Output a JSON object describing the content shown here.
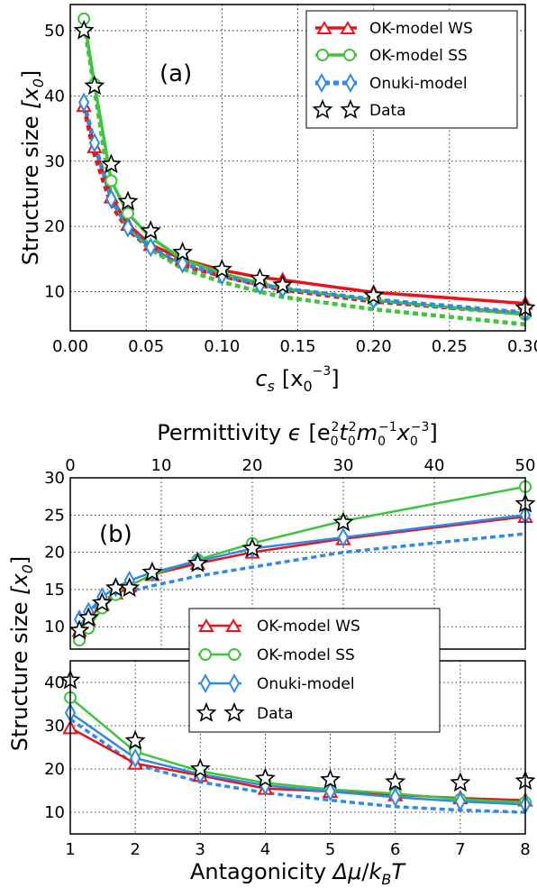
{
  "colors": {
    "ws": "#e8141b",
    "ss": "#3dc63c",
    "onuki": "#2e8ae6",
    "data_fill": "#ffffff",
    "data_edge": "#000000"
  },
  "chart_data": [
    {
      "id": "a",
      "type": "line",
      "panel_label": "(a)",
      "xlabel_main": "c",
      "xlabel_sub": "s",
      "xlabel_open": "[x",
      "xlabel_xsub": "0",
      "xlabel_sup": "−3",
      "xlabel_close": "]",
      "ylabel_main": "Structure size ",
      "ylabel_open": "[x",
      "ylabel_sub": "0",
      "ylabel_close": "]",
      "xlim": [
        0,
        0.3
      ],
      "ylim": [
        4,
        54
      ],
      "xticks": [
        "0.00",
        "0.05",
        "0.10",
        "0.15",
        "0.20",
        "0.25",
        "0.30"
      ],
      "yticks": [
        "10",
        "20",
        "30",
        "40",
        "50"
      ],
      "grid": true,
      "legend": [
        "OK-model WS",
        "OK-model SS",
        "Onuki-model",
        "Data"
      ],
      "x": [
        0.009,
        0.016,
        0.027,
        0.038,
        0.053,
        0.074,
        0.1,
        0.125,
        0.14,
        0.2,
        0.3
      ],
      "series": [
        {
          "name": "OK-model WS",
          "key": "ws",
          "values": [
            38.5,
            32.2,
            24.5,
            20.3,
            17.2,
            15.0,
            13.3,
            12.2,
            11.8,
            9.9,
            8.2
          ]
        },
        {
          "name": "OK-model SS",
          "key": "ss",
          "values": [
            51.8,
            41.8,
            27.0,
            22.0,
            18.3,
            15.0,
            12.8,
            11.3,
            10.5,
            8.7,
            6.5
          ]
        },
        {
          "name": "Onuki-model",
          "key": "onuki",
          "values": [
            39.0,
            32.8,
            24.2,
            19.8,
            16.8,
            14.3,
            12.5,
            11.0,
            10.5,
            8.8,
            6.8
          ]
        },
        {
          "name": "Data",
          "key": "data",
          "values": [
            50.0,
            41.5,
            29.5,
            23.8,
            19.3,
            16.0,
            13.4,
            12.0,
            11.0,
            9.4,
            7.5
          ]
        }
      ],
      "extra_dashed": [
        {
          "key": "ws",
          "values": [
            38.2,
            31.0,
            23.3,
            19.5,
            16.5,
            14.0,
            12.4,
            11.0,
            10.3,
            8.5,
            6.6
          ]
        },
        {
          "key": "ss",
          "values": [
            51.0,
            41.0,
            24.5,
            20.0,
            16.5,
            13.5,
            11.5,
            10.0,
            9.2,
            7.3,
            5.0
          ]
        }
      ]
    },
    {
      "id": "b_top",
      "type": "line",
      "panel_label": "(b)",
      "xlabel_top_main": "Permittivity ",
      "xlabel_top_sym": "ϵ",
      "xlabel_top_units": "[e",
      "xlabel_top_e_sub": "0",
      "xlabel_top_e_sup": "2",
      "xlabel_top_t": "t",
      "xlabel_top_t_sub": "0",
      "xlabel_top_t_sup": "2",
      "xlabel_top_m": "m",
      "xlabel_top_m_sub": "0",
      "xlabel_top_m_sup": "−1",
      "xlabel_top_x": "x",
      "xlabel_top_x_sub": "0",
      "xlabel_top_x_sup": "−3",
      "xlabel_top_close": "]",
      "xlim": [
        0,
        50
      ],
      "ylim": [
        7,
        30
      ],
      "xticks": [
        "0",
        "10",
        "20",
        "30",
        "40",
        "50"
      ],
      "yticks": [
        "10",
        "15",
        "20",
        "25",
        "30"
      ],
      "grid": true,
      "x": [
        1.0,
        2.0,
        3.5,
        5.0,
        6.5,
        9.0,
        14.0,
        20.0,
        30.0,
        50.0
      ],
      "series": [
        {
          "name": "OK-model WS",
          "key": "ws",
          "values": [
            9.5,
            11.0,
            13.0,
            14.5,
            15.5,
            17.0,
            18.5,
            20.0,
            21.8,
            24.8
          ]
        },
        {
          "name": "OK-model SS",
          "key": "ss",
          "values": [
            8.2,
            9.8,
            12.5,
            14.3,
            15.5,
            17.0,
            19.0,
            21.2,
            24.2,
            28.8
          ]
        },
        {
          "name": "Onuki-model",
          "key": "onuki",
          "values": [
            11.0,
            12.0,
            14.0,
            15.3,
            16.2,
            17.3,
            18.8,
            20.5,
            22.0,
            25.0
          ]
        },
        {
          "name": "Data",
          "key": "data",
          "values": [
            9.5,
            11.2,
            13.2,
            15.2,
            15.2,
            17.3,
            18.5,
            20.5,
            24.0,
            26.5
          ]
        }
      ],
      "extra_dashed": [
        {
          "key": "onuki",
          "values": [
            11.0,
            12.0,
            13.5,
            14.3,
            14.8,
            15.5,
            16.8,
            18.0,
            20.0,
            22.5
          ]
        }
      ]
    },
    {
      "id": "b_bottom",
      "type": "line",
      "xlabel_main": "Antagonicity ",
      "xlabel_sym": "Δμ",
      "xlabel_slash": "/",
      "xlabel_k": "k",
      "xlabel_k_sub": "B",
      "xlabel_T": "T",
      "ylabel_main": "Structure size ",
      "ylabel_open": "[x",
      "ylabel_sub": "0",
      "ylabel_close": "]",
      "xlim": [
        1,
        8
      ],
      "ylim": [
        5,
        45
      ],
      "xticks": [
        "1",
        "2",
        "3",
        "4",
        "5",
        "6",
        "7",
        "8"
      ],
      "yticks": [
        "10",
        "20",
        "30",
        "40"
      ],
      "grid": true,
      "legend": [
        "OK-model WS",
        "OK-model SS",
        "Onuki-model",
        "Data"
      ],
      "x": [
        1,
        2,
        3,
        4,
        5,
        6,
        7,
        8
      ],
      "series": [
        {
          "name": "OK-model WS",
          "key": "ws",
          "values": [
            29.5,
            21.3,
            18.5,
            15.5,
            14.8,
            14.0,
            13.3,
            12.8
          ]
        },
        {
          "name": "OK-model SS",
          "key": "ss",
          "values": [
            36.5,
            24.0,
            19.5,
            16.8,
            15.3,
            14.3,
            13.0,
            12.3
          ]
        },
        {
          "name": "Onuki-model",
          "key": "onuki",
          "values": [
            33.0,
            22.5,
            18.8,
            16.2,
            14.8,
            13.5,
            12.5,
            11.8
          ]
        },
        {
          "name": "Data",
          "key": "data",
          "values": [
            40.5,
            26.5,
            20.0,
            17.8,
            17.5,
            17.0,
            16.8,
            17.2
          ]
        }
      ],
      "extra_dashed": [
        {
          "key": "onuki",
          "values": [
            31.5,
            21.0,
            17.0,
            14.5,
            12.8,
            11.3,
            10.5,
            10.0
          ]
        }
      ]
    }
  ]
}
